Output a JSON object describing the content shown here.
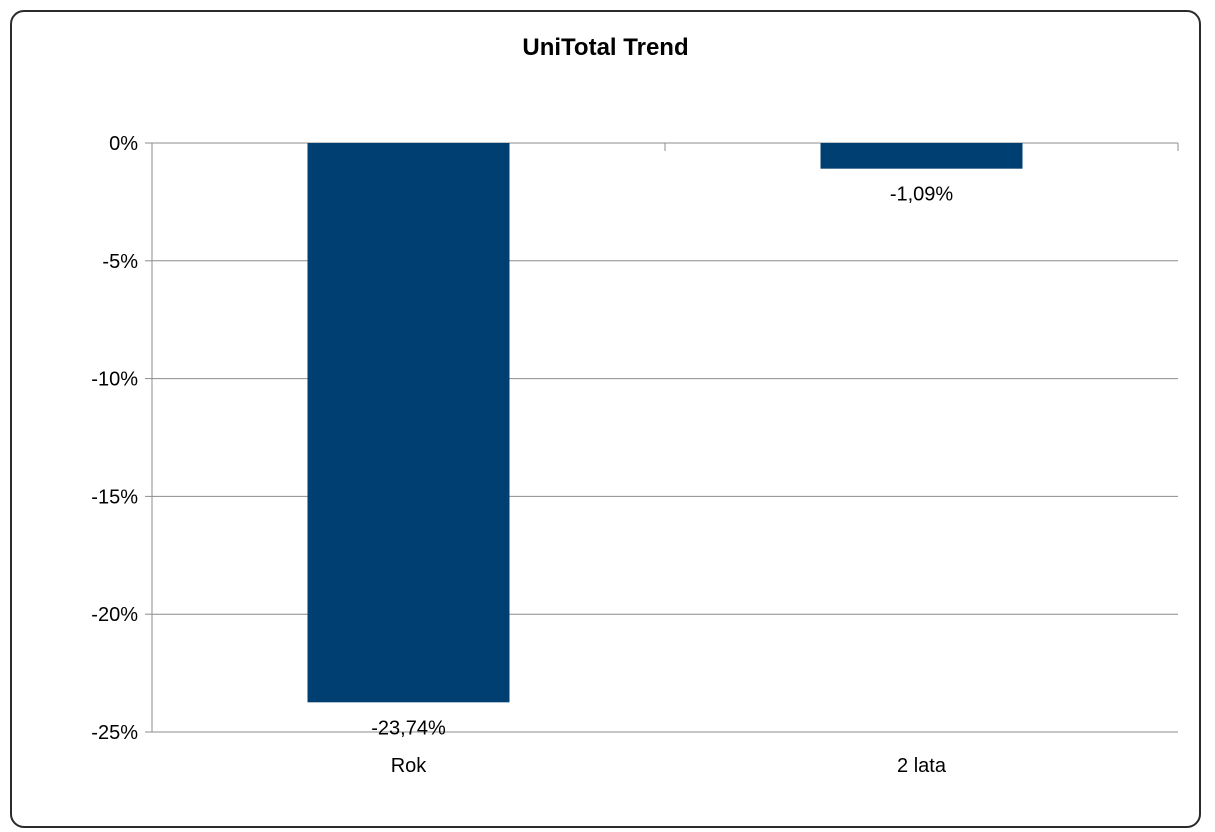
{
  "chart_data": {
    "type": "bar",
    "title": "UniTotal Trend",
    "categories": [
      "Rok",
      "2 lata"
    ],
    "values": [
      -23.74,
      -1.09
    ],
    "data_labels": [
      "-23,74%",
      "-1,09%"
    ],
    "ylim": [
      -25,
      0
    ],
    "yticks": [
      0,
      -5,
      -10,
      -15,
      -20,
      -25
    ],
    "ytick_labels": [
      "0%",
      "-5%",
      "-10%",
      "-15%",
      "-20%",
      "-25%"
    ],
    "xlabel": "",
    "ylabel": "",
    "grid": true,
    "legend": "none",
    "bar_color": "#003f72",
    "grid_color": "#8c8c8c",
    "frame_color": "#2b2b2b"
  }
}
